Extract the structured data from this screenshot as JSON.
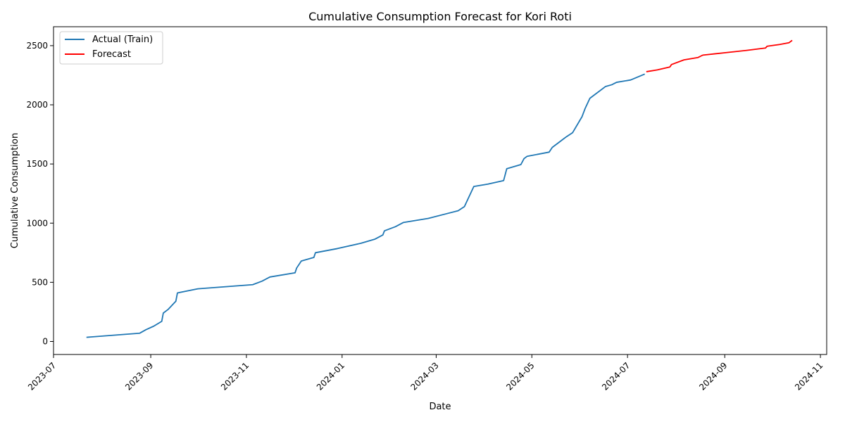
{
  "chart_data": {
    "type": "line",
    "title": "Cumulative Consumption Forecast for Kori Roti",
    "xlabel": "Date",
    "ylabel": "Cumulative Consumption",
    "xlim": [
      "2023-07-01",
      "2024-11-05"
    ],
    "ylim": [
      -110,
      2660
    ],
    "x_ticks": [
      "2023-07",
      "2023-09",
      "2023-11",
      "2024-01",
      "2024-03",
      "2024-05",
      "2024-07",
      "2024-09",
      "2024-11"
    ],
    "y_ticks": [
      0,
      500,
      1000,
      1500,
      2000,
      2500
    ],
    "grid": false,
    "legend_position": "top-left",
    "series": [
      {
        "name": "Actual (Train)",
        "color": "#1f77b4",
        "points": [
          [
            "2023-07-22",
            35
          ],
          [
            "2023-08-25",
            70
          ],
          [
            "2023-08-29",
            100
          ],
          [
            "2023-09-03",
            130
          ],
          [
            "2023-09-08",
            170
          ],
          [
            "2023-09-09",
            240
          ],
          [
            "2023-09-12",
            270
          ],
          [
            "2023-09-17",
            340
          ],
          [
            "2023-09-18",
            410
          ],
          [
            "2023-10-01",
            445
          ],
          [
            "2023-11-05",
            480
          ],
          [
            "2023-11-11",
            510
          ],
          [
            "2023-11-16",
            545
          ],
          [
            "2023-12-02",
            580
          ],
          [
            "2023-12-03",
            620
          ],
          [
            "2023-12-06",
            680
          ],
          [
            "2023-12-14",
            710
          ],
          [
            "2023-12-15",
            750
          ],
          [
            "2023-12-29",
            785
          ],
          [
            "2024-01-13",
            830
          ],
          [
            "2024-01-22",
            865
          ],
          [
            "2024-01-27",
            900
          ],
          [
            "2024-01-28",
            935
          ],
          [
            "2024-02-04",
            970
          ],
          [
            "2024-02-09",
            1005
          ],
          [
            "2024-02-25",
            1040
          ],
          [
            "2024-03-15",
            1105
          ],
          [
            "2024-03-19",
            1140
          ],
          [
            "2024-03-25",
            1310
          ],
          [
            "2024-04-03",
            1330
          ],
          [
            "2024-04-13",
            1360
          ],
          [
            "2024-04-15",
            1460
          ],
          [
            "2024-04-24",
            1495
          ],
          [
            "2024-04-26",
            1545
          ],
          [
            "2024-04-28",
            1565
          ],
          [
            "2024-05-12",
            1600
          ],
          [
            "2024-05-14",
            1640
          ],
          [
            "2024-05-20",
            1700
          ],
          [
            "2024-05-23",
            1730
          ],
          [
            "2024-05-27",
            1765
          ],
          [
            "2024-06-02",
            1900
          ],
          [
            "2024-06-04",
            1970
          ],
          [
            "2024-06-07",
            2055
          ],
          [
            "2024-06-17",
            2155
          ],
          [
            "2024-06-21",
            2170
          ],
          [
            "2024-06-24",
            2190
          ],
          [
            "2024-07-03",
            2210
          ],
          [
            "2024-07-12",
            2260
          ]
        ]
      },
      {
        "name": "Forecast",
        "color": "#ff0000",
        "points": [
          [
            "2024-07-13",
            2280
          ],
          [
            "2024-07-20",
            2295
          ],
          [
            "2024-07-28",
            2320
          ],
          [
            "2024-07-29",
            2340
          ],
          [
            "2024-08-06",
            2380
          ],
          [
            "2024-08-15",
            2400
          ],
          [
            "2024-08-18",
            2420
          ],
          [
            "2024-09-01",
            2440
          ],
          [
            "2024-09-15",
            2460
          ],
          [
            "2024-09-27",
            2480
          ],
          [
            "2024-09-28",
            2495
          ],
          [
            "2024-10-06",
            2510
          ],
          [
            "2024-10-12",
            2525
          ],
          [
            "2024-10-14",
            2545
          ]
        ]
      }
    ]
  }
}
